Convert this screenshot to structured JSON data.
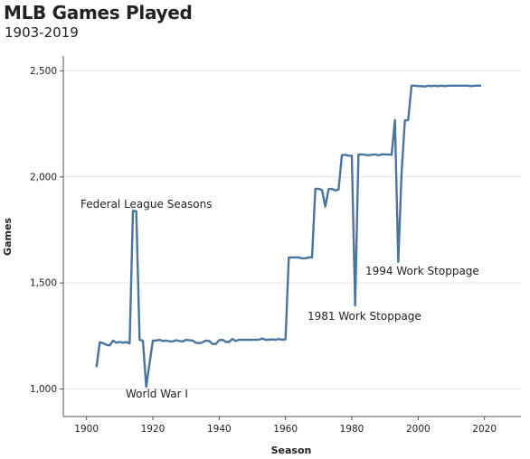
{
  "chart_data": {
    "type": "line",
    "title": "MLB Games Played",
    "subtitle": "1903-2019",
    "xlabel": "Season",
    "ylabel": "Games",
    "xlim": [
      1893,
      2031
    ],
    "ylim": [
      870,
      2570
    ],
    "xticks": [
      1900,
      1920,
      1940,
      1960,
      1980,
      2000,
      2020
    ],
    "yticks": [
      1000,
      1500,
      2000,
      2500
    ],
    "xtick_labels": [
      "1900",
      "1920",
      "1940",
      "1960",
      "1980",
      "2000",
      "2020"
    ],
    "ytick_labels": [
      "1,000",
      "1,500",
      "2,000",
      "2,500"
    ],
    "grid": "horizontal",
    "line_color": "#4a73a0",
    "series": [
      {
        "x": [
          1903,
          1904,
          1905,
          1906,
          1907,
          1908,
          1909,
          1910,
          1911,
          1912,
          1913,
          1914,
          1915,
          1916,
          1917,
          1918,
          1919,
          1920,
          1921,
          1922,
          1923,
          1924,
          1925,
          1926,
          1927,
          1928,
          1929,
          1930,
          1931,
          1932,
          1933,
          1934,
          1935,
          1936,
          1937,
          1938,
          1939,
          1940,
          1941,
          1942,
          1943,
          1944,
          1945,
          1946,
          1947,
          1948,
          1949,
          1950,
          1951,
          1952,
          1953,
          1954,
          1955,
          1956,
          1957,
          1958,
          1959,
          1960,
          1961,
          1962,
          1963,
          1964,
          1965,
          1966,
          1967,
          1968,
          1969,
          1970,
          1971,
          1972,
          1973,
          1974,
          1975,
          1976,
          1977,
          1978,
          1979,
          1980,
          1981,
          1982,
          1983,
          1984,
          1985,
          1986,
          1987,
          1988,
          1989,
          1990,
          1991,
          1992,
          1993,
          1994,
          1995,
          1996,
          1997,
          1998,
          1999,
          2000,
          2001,
          2002,
          2003,
          2004,
          2005,
          2006,
          2007,
          2008,
          2009,
          2010,
          2011,
          2012,
          2013,
          2014,
          2015,
          2016,
          2017,
          2018,
          2019
        ],
        "y": [
          1103,
          1220,
          1216,
          1208,
          1205,
          1228,
          1218,
          1222,
          1218,
          1221,
          1215,
          1840,
          1838,
          1232,
          1228,
          1010,
          1120,
          1228,
          1228,
          1232,
          1226,
          1228,
          1225,
          1224,
          1230,
          1226,
          1224,
          1232,
          1230,
          1228,
          1218,
          1216,
          1220,
          1228,
          1226,
          1212,
          1212,
          1230,
          1232,
          1222,
          1222,
          1236,
          1226,
          1232,
          1232,
          1232,
          1232,
          1232,
          1232,
          1232,
          1238,
          1232,
          1232,
          1234,
          1232,
          1236,
          1232,
          1234,
          1620,
          1620,
          1620,
          1620,
          1616,
          1616,
          1620,
          1620,
          1944,
          1944,
          1938,
          1860,
          1942,
          1944,
          1936,
          1940,
          2102,
          2104,
          2100,
          2100,
          1394,
          2106,
          2106,
          2104,
          2102,
          2104,
          2106,
          2102,
          2106,
          2106,
          2106,
          2104,
          2268,
          1600,
          2018,
          2266,
          2268,
          2430,
          2430,
          2428,
          2428,
          2426,
          2430,
          2428,
          2430,
          2428,
          2430,
          2428,
          2430,
          2430,
          2430,
          2430,
          2430,
          2430,
          2430,
          2428,
          2430,
          2430,
          2430
        ]
      }
    ],
    "annotations": [
      {
        "text": "Federal League Seasons"
      },
      {
        "text": "World War I"
      },
      {
        "text": "1981 Work Stoppage"
      },
      {
        "text": "1994 Work Stoppage"
      }
    ]
  }
}
